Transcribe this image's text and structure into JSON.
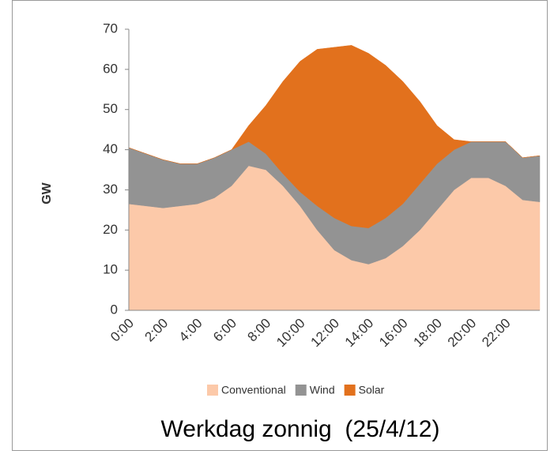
{
  "chart_data": {
    "type": "stacked_area",
    "title": "Werkdag zonnig  (25/4/12)",
    "y_label": "GW",
    "categories": [
      "0:00",
      null,
      "2:00",
      null,
      "4:00",
      null,
      "6:00",
      null,
      "8:00",
      null,
      "10:00",
      null,
      "12:00",
      null,
      "14:00",
      null,
      "16:00",
      null,
      "18:00",
      null,
      "20:00",
      null,
      "22:00",
      null,
      null
    ],
    "series": [
      {
        "name": "Conventional",
        "color": "#fcc9a9",
        "values": [
          26.5,
          26,
          25.5,
          26,
          26.5,
          28,
          31,
          36,
          35,
          31,
          26,
          20,
          15,
          12.5,
          11.5,
          13,
          16,
          20,
          25,
          30,
          33,
          33,
          31,
          27.5,
          27
        ]
      },
      {
        "name": "Wind",
        "color": "#939393",
        "values": [
          14,
          13,
          12,
          10.5,
          10,
          10,
          9,
          6,
          4,
          3,
          3.5,
          6,
          8,
          8.5,
          9,
          10,
          10.5,
          11.5,
          11.5,
          10,
          9,
          9,
          11,
          10.5,
          11.5
        ]
      },
      {
        "name": "Solar",
        "color": "#e2711d",
        "values": [
          0,
          0,
          0,
          0,
          0,
          0,
          0,
          4,
          12,
          23,
          32.5,
          39,
          42.5,
          45,
          43.5,
          38,
          30.5,
          20.5,
          9.5,
          2.5,
          0,
          0,
          0,
          0,
          0
        ]
      }
    ],
    "ylim": [
      0,
      70
    ],
    "yticks": [
      0,
      10,
      20,
      30,
      40,
      50,
      60,
      70
    ],
    "legend": "bottom"
  }
}
